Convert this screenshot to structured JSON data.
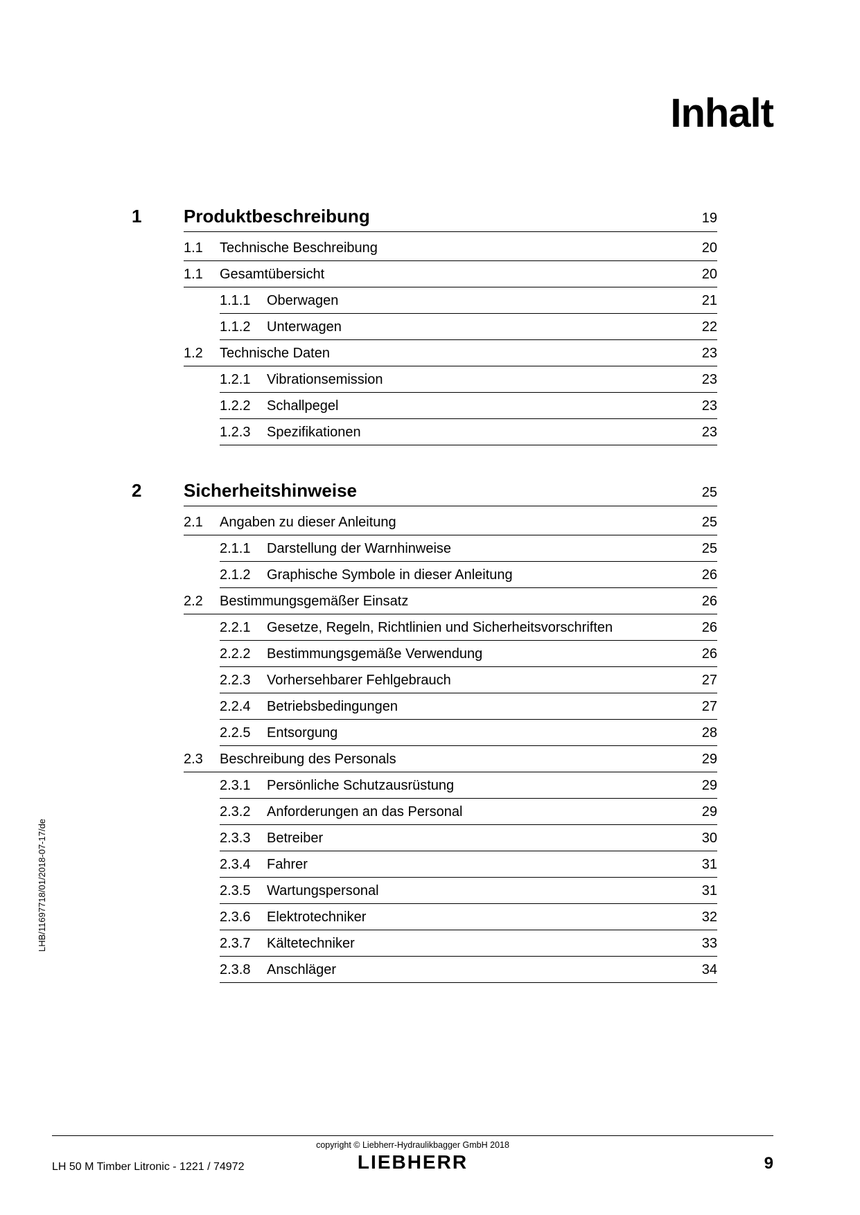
{
  "page_title": "Inhalt",
  "vertical_code": "LHB/11697718/01/2018-07-17/de",
  "toc": [
    {
      "num": "1",
      "title": "Produktbeschreibung",
      "page": "19",
      "sections": [
        {
          "num": "1.1",
          "title": "Technische Beschreibung",
          "page": "20",
          "subs": []
        },
        {
          "num": "1.1",
          "title": "Gesamtübersicht",
          "page": "20",
          "subs": [
            {
              "num": "1.1.1",
              "title": "Oberwagen",
              "page": "21"
            },
            {
              "num": "1.1.2",
              "title": "Unterwagen",
              "page": "22"
            }
          ]
        },
        {
          "num": "1.2",
          "title": "Technische Daten",
          "page": "23",
          "subs": [
            {
              "num": "1.2.1",
              "title": "Vibrationsemission",
              "page": "23"
            },
            {
              "num": "1.2.2",
              "title": "Schallpegel",
              "page": "23"
            },
            {
              "num": "1.2.3",
              "title": "Spezifikationen",
              "page": "23"
            }
          ]
        }
      ]
    },
    {
      "num": "2",
      "title": "Sicherheitshinweise",
      "page": "25",
      "sections": [
        {
          "num": "2.1",
          "title": "Angaben zu dieser Anleitung",
          "page": "25",
          "subs": [
            {
              "num": "2.1.1",
              "title": "Darstellung der Warnhinweise",
              "page": "25"
            },
            {
              "num": "2.1.2",
              "title": "Graphische Symbole in dieser Anleitung",
              "page": "26"
            }
          ]
        },
        {
          "num": "2.2",
          "title": "Bestimmungsgemäßer Einsatz",
          "page": "26",
          "subs": [
            {
              "num": "2.2.1",
              "title": "Gesetze, Regeln, Richtlinien und Sicherheitsvorschriften",
              "page": "26"
            },
            {
              "num": "2.2.2",
              "title": "Bestimmungsgemäße Verwendung",
              "page": "26"
            },
            {
              "num": "2.2.3",
              "title": "Vorhersehbarer Fehlgebrauch",
              "page": "27"
            },
            {
              "num": "2.2.4",
              "title": "Betriebsbedingungen",
              "page": "27"
            },
            {
              "num": "2.2.5",
              "title": "Entsorgung",
              "page": "28"
            }
          ]
        },
        {
          "num": "2.3",
          "title": "Beschreibung des Personals",
          "page": "29",
          "subs": [
            {
              "num": "2.3.1",
              "title": "Persönliche Schutzausrüstung",
              "page": "29"
            },
            {
              "num": "2.3.2",
              "title": "Anforderungen an das Personal",
              "page": "29"
            },
            {
              "num": "2.3.3",
              "title": "Betreiber",
              "page": "30"
            },
            {
              "num": "2.3.4",
              "title": "Fahrer",
              "page": "31"
            },
            {
              "num": "2.3.5",
              "title": "Wartungspersonal",
              "page": "31"
            },
            {
              "num": "2.3.6",
              "title": "Elektrotechniker",
              "page": "32"
            },
            {
              "num": "2.3.7",
              "title": "Kältetechniker",
              "page": "33"
            },
            {
              "num": "2.3.8",
              "title": "Anschläger",
              "page": "34"
            }
          ]
        }
      ]
    }
  ],
  "footer": {
    "left": "LH 50 M Timber Litronic  - 1221 / 74972",
    "copyright": "copyright © Liebherr-Hydraulikbagger GmbH 2018",
    "brand": "LIEBHERR",
    "page_num": "9"
  }
}
